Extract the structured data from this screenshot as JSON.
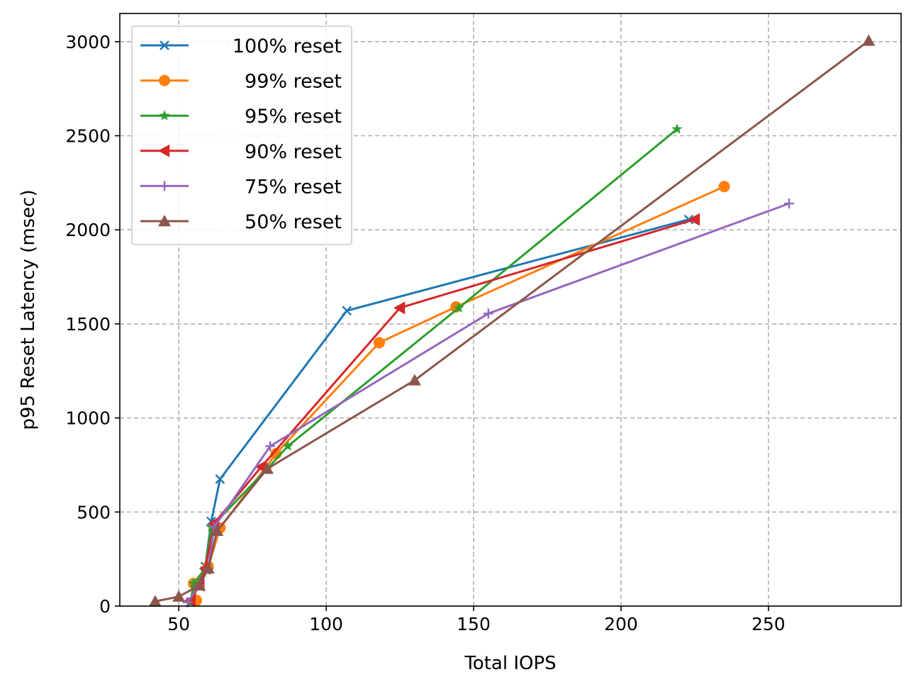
{
  "chart_data": {
    "type": "line",
    "title": "",
    "xlabel": "Total IOPS",
    "ylabel": "p95 Reset Latency (msec)",
    "xlim": [
      30,
      295
    ],
    "ylim": [
      0,
      3150
    ],
    "xticks": [
      50,
      100,
      150,
      200,
      250
    ],
    "yticks": [
      0,
      500,
      1000,
      1500,
      2000,
      2500,
      3000
    ],
    "grid": true,
    "legend_position": "top-left",
    "series": [
      {
        "name": "100% reset",
        "color": "#1f77b4",
        "marker": "x",
        "points": [
          [
            54,
            20
          ],
          [
            56,
            110
          ],
          [
            59,
            210
          ],
          [
            61,
            450
          ],
          [
            64,
            675
          ],
          [
            107,
            1570
          ],
          [
            223,
            2055
          ]
        ]
      },
      {
        "name": "99% reset",
        "color": "#ff7f0e",
        "marker": "circle",
        "points": [
          [
            56,
            30
          ],
          [
            55,
            120
          ],
          [
            60,
            210
          ],
          [
            64,
            415
          ],
          [
            83,
            810
          ],
          [
            118,
            1400
          ],
          [
            144,
            1590
          ],
          [
            235,
            2230
          ]
        ]
      },
      {
        "name": "95% reset",
        "color": "#2ca02c",
        "marker": "star",
        "points": [
          [
            54,
            20
          ],
          [
            55,
            120
          ],
          [
            59,
            200
          ],
          [
            61,
            420
          ],
          [
            80,
            730
          ],
          [
            87,
            850
          ],
          [
            145,
            1585
          ],
          [
            219,
            2535
          ]
        ]
      },
      {
        "name": "90% reset",
        "color": "#d62728",
        "marker": "triangle-left",
        "points": [
          [
            54,
            30
          ],
          [
            57,
            110
          ],
          [
            59,
            200
          ],
          [
            62,
            440
          ],
          [
            78,
            740
          ],
          [
            125,
            1585
          ],
          [
            225,
            2055
          ]
        ]
      },
      {
        "name": "75% reset",
        "color": "#9467bd",
        "marker": "plus",
        "points": [
          [
            53,
            20
          ],
          [
            57,
            110
          ],
          [
            60,
            200
          ],
          [
            62,
            420
          ],
          [
            81,
            850
          ],
          [
            155,
            1555
          ],
          [
            257,
            2140
          ]
        ]
      },
      {
        "name": "50% reset",
        "color": "#8c564b",
        "marker": "triangle-up",
        "points": [
          [
            42,
            25
          ],
          [
            50,
            50
          ],
          [
            57,
            110
          ],
          [
            60,
            200
          ],
          [
            63,
            400
          ],
          [
            80,
            730
          ],
          [
            130,
            1200
          ],
          [
            284,
            3005
          ]
        ]
      }
    ]
  }
}
